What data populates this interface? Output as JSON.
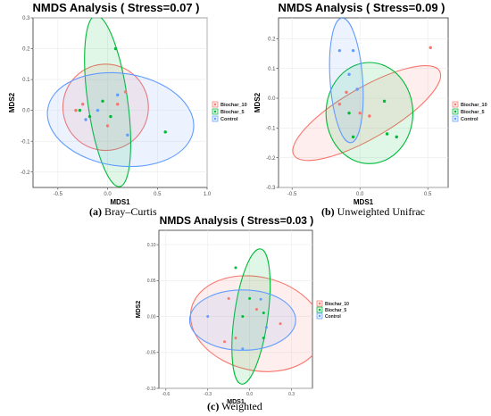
{
  "colors": {
    "biochar_10": "#F8766D",
    "biochar_5": "#00BA38",
    "control": "#619CFF"
  },
  "chart_data": [
    {
      "id": "a",
      "type": "scatter",
      "title": "NMDS Analysis ( Stress=0.07 )",
      "xlabel": "MDS1",
      "ylabel": "MDS2",
      "xlim": [
        -0.75,
        1.0
      ],
      "ylim": [
        -0.25,
        0.3
      ],
      "xticks": [
        "-0.5",
        "0.0",
        "0.5",
        "1.0"
      ],
      "xtick_values": [
        -0.5,
        0.0,
        0.5,
        1.0
      ],
      "yticks": [
        "0.3",
        "0.2",
        "0.1",
        "0.0",
        "-0.1",
        "-0.2"
      ],
      "ytick_values": [
        0.3,
        0.2,
        0.1,
        0.0,
        -0.1,
        -0.2
      ],
      "grid": true,
      "legend_position": "right",
      "caption": {
        "letter": "(a)",
        "text": " Bray–Curtis"
      },
      "series": [
        {
          "name": "Biochar_10",
          "color": "#F8766D",
          "x": [
            -0.32,
            -0.25,
            0.0,
            0.1,
            0.18
          ],
          "y": [
            0.0,
            0.02,
            -0.05,
            0.02,
            0.06
          ],
          "ellipse": {
            "cx": -0.02,
            "cy": 0.01,
            "rx": 0.43,
            "ry": 0.14,
            "angle": 0
          }
        },
        {
          "name": "Biochar_5",
          "color": "#00BA38",
          "x": [
            -0.28,
            -0.18,
            -0.05,
            0.03,
            0.08,
            0.58
          ],
          "y": [
            0.0,
            -0.02,
            0.03,
            -0.02,
            0.2,
            -0.07
          ],
          "ellipse": {
            "cx": 0.0,
            "cy": 0.03,
            "rx": 0.2,
            "ry": 0.28,
            "angle": -8
          }
        },
        {
          "name": "Control",
          "color": "#619CFF",
          "x": [
            -0.22,
            -0.1,
            0.1,
            0.2
          ],
          "y": [
            -0.03,
            0.0,
            0.05,
            -0.08
          ],
          "ellipse": {
            "cx": 0.13,
            "cy": -0.03,
            "rx": 0.74,
            "ry": 0.15,
            "angle": 8
          }
        }
      ]
    },
    {
      "id": "b",
      "type": "scatter",
      "title": "NMDS Analysis ( Stress=0.09 )",
      "xlabel": "MDS1",
      "ylabel": "MDS2",
      "xlim": [
        -0.6,
        0.65
      ],
      "ylim": [
        -0.3,
        0.27
      ],
      "xticks": [
        "-0.5",
        "0.0",
        "0.5"
      ],
      "xtick_values": [
        -0.5,
        0.0,
        0.5
      ],
      "yticks": [
        "0.2",
        "0.1",
        "0.0",
        "-0.1",
        "-0.2",
        "-0.3"
      ],
      "ytick_values": [
        0.2,
        0.1,
        0.0,
        -0.1,
        -0.2,
        -0.3
      ],
      "grid": true,
      "legend_position": "right",
      "caption": {
        "letter": "(b)",
        "text": " Unweighted Unifrac"
      },
      "series": [
        {
          "name": "Biochar_10",
          "color": "#F8766D",
          "x": [
            -0.15,
            -0.1,
            0.0,
            0.07,
            0.52
          ],
          "y": [
            -0.02,
            0.02,
            -0.05,
            -0.06,
            0.17
          ],
          "ellipse": {
            "cx": 0.05,
            "cy": -0.05,
            "rx": 0.62,
            "ry": 0.085,
            "angle": -30
          }
        },
        {
          "name": "Biochar_5",
          "color": "#00BA38",
          "x": [
            -0.08,
            -0.05,
            0.18,
            0.2,
            0.27
          ],
          "y": [
            -0.05,
            -0.13,
            -0.01,
            -0.12,
            -0.13
          ],
          "ellipse": {
            "cx": 0.07,
            "cy": -0.05,
            "rx": 0.32,
            "ry": 0.17,
            "angle": 0
          }
        },
        {
          "name": "Control",
          "color": "#619CFF",
          "x": [
            -0.15,
            -0.05,
            -0.08,
            -0.02
          ],
          "y": [
            0.16,
            0.16,
            0.08,
            0.03
          ],
          "ellipse": {
            "cx": -0.1,
            "cy": 0.06,
            "rx": 0.12,
            "ry": 0.21,
            "angle": -4
          }
        }
      ]
    },
    {
      "id": "c",
      "type": "scatter",
      "title": "NMDS Analysis ( Stress=0.03 )",
      "xlabel": "MDS1",
      "ylabel": "MDS2",
      "xlim": [
        -0.65,
        0.45
      ],
      "ylim": [
        -0.1,
        0.12
      ],
      "xticks": [
        "-0.6",
        "-0.3",
        "0.0",
        "0.3"
      ],
      "xtick_values": [
        -0.6,
        -0.3,
        0.0,
        0.3
      ],
      "yticks": [
        "0.10",
        "0.05",
        "0.00",
        "-0.05",
        "-0.10"
      ],
      "ytick_values": [
        0.1,
        0.05,
        0.0,
        -0.05,
        -0.1
      ],
      "grid": true,
      "legend_position": "right",
      "caption": {
        "letter": "(c)",
        "text": " Weighted"
      },
      "series": [
        {
          "name": "Biochar_10",
          "color": "#F8766D",
          "x": [
            -0.18,
            -0.1,
            -0.15,
            0.05,
            0.22
          ],
          "y": [
            -0.035,
            -0.03,
            0.025,
            0.01,
            -0.01
          ],
          "ellipse": {
            "cx": 0.05,
            "cy": -0.01,
            "rx": 0.48,
            "ry": 0.065,
            "angle": 13
          }
        },
        {
          "name": "Biochar_5",
          "color": "#00BA38",
          "x": [
            -0.1,
            -0.05,
            0.0,
            0.1,
            0.1
          ],
          "y": [
            0.068,
            0.0,
            0.025,
            -0.03,
            0.005
          ],
          "ellipse": {
            "cx": 0.01,
            "cy": 0.0,
            "rx": 0.12,
            "ry": 0.095,
            "angle": 8
          }
        },
        {
          "name": "Control",
          "color": "#619CFF",
          "x": [
            -0.3,
            -0.05,
            0.08,
            0.12
          ],
          "y": [
            0.0,
            -0.045,
            0.024,
            -0.015
          ],
          "ellipse": {
            "cx": -0.05,
            "cy": -0.005,
            "rx": 0.38,
            "ry": 0.042,
            "angle": 0
          }
        }
      ]
    }
  ]
}
